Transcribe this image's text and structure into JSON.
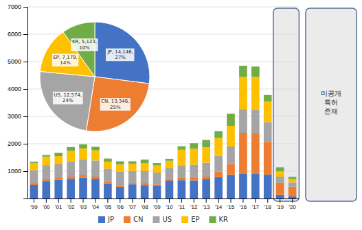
{
  "chart_data": [
    {
      "type": "bar",
      "stacked": true,
      "categories": [
        "'99",
        "'00",
        "'01",
        "'02",
        "'03",
        "'04",
        "'05",
        "'06",
        "'07",
        "'08",
        "'09",
        "'10",
        "'11",
        "'12",
        "'13",
        "'14",
        "'15",
        "'16",
        "'17",
        "'18",
        "'19",
        "'20"
      ],
      "series": [
        {
          "name": "JP",
          "color": "#4472C4",
          "values": [
            500,
            640,
            680,
            720,
            760,
            720,
            540,
            430,
            520,
            490,
            470,
            650,
            670,
            660,
            700,
            780,
            860,
            900,
            900,
            870,
            130,
            80
          ]
        },
        {
          "name": "CN",
          "color": "#ED7D31",
          "values": [
            50,
            60,
            70,
            80,
            90,
            80,
            60,
            60,
            50,
            60,
            50,
            60,
            80,
            90,
            100,
            200,
            400,
            1500,
            1500,
            1200,
            450,
            350
          ]
        },
        {
          "name": "US",
          "color": "#A5A5A5",
          "values": [
            480,
            520,
            500,
            560,
            580,
            590,
            490,
            490,
            440,
            450,
            430,
            410,
            450,
            490,
            510,
            580,
            640,
            850,
            840,
            720,
            220,
            160
          ]
        },
        {
          "name": "EP",
          "color": "#FFC000",
          "values": [
            270,
            310,
            300,
            380,
            400,
            370,
            260,
            260,
            260,
            290,
            260,
            260,
            580,
            580,
            560,
            650,
            750,
            1200,
            1200,
            750,
            190,
            120
          ]
        },
        {
          "name": "KR",
          "color": "#70AD47",
          "values": [
            40,
            60,
            120,
            140,
            150,
            130,
            110,
            120,
            90,
            130,
            90,
            70,
            130,
            200,
            270,
            250,
            450,
            400,
            380,
            240,
            150,
            80
          ]
        }
      ],
      "ylim": [
        0,
        7000
      ],
      "yticks": [
        1000,
        2000,
        3000,
        4000,
        5000,
        6000,
        7000
      ],
      "grid": true,
      "legend": "bottom",
      "annotation": "미공개\n특허\n존재"
    },
    {
      "type": "pie",
      "categories": [
        "JP",
        "CN",
        "US",
        "EP",
        "KR"
      ],
      "values": [
        14146,
        13346,
        12574,
        7179,
        5123
      ],
      "value_labels": [
        "JP, 14,146,",
        "CN, 13,346,",
        "US, 12,574,",
        "EP, 7,179,",
        "KR, 5,123,"
      ],
      "percentages": [
        27,
        25,
        24,
        14,
        10
      ],
      "percentage_labels": [
        "27%",
        "25%",
        "24%",
        "14%",
        "10%"
      ],
      "colors": [
        "#4472C4",
        "#ED7D31",
        "#A5A5A5",
        "#FFC000",
        "#70AD47"
      ],
      "data_labels": true
    }
  ]
}
